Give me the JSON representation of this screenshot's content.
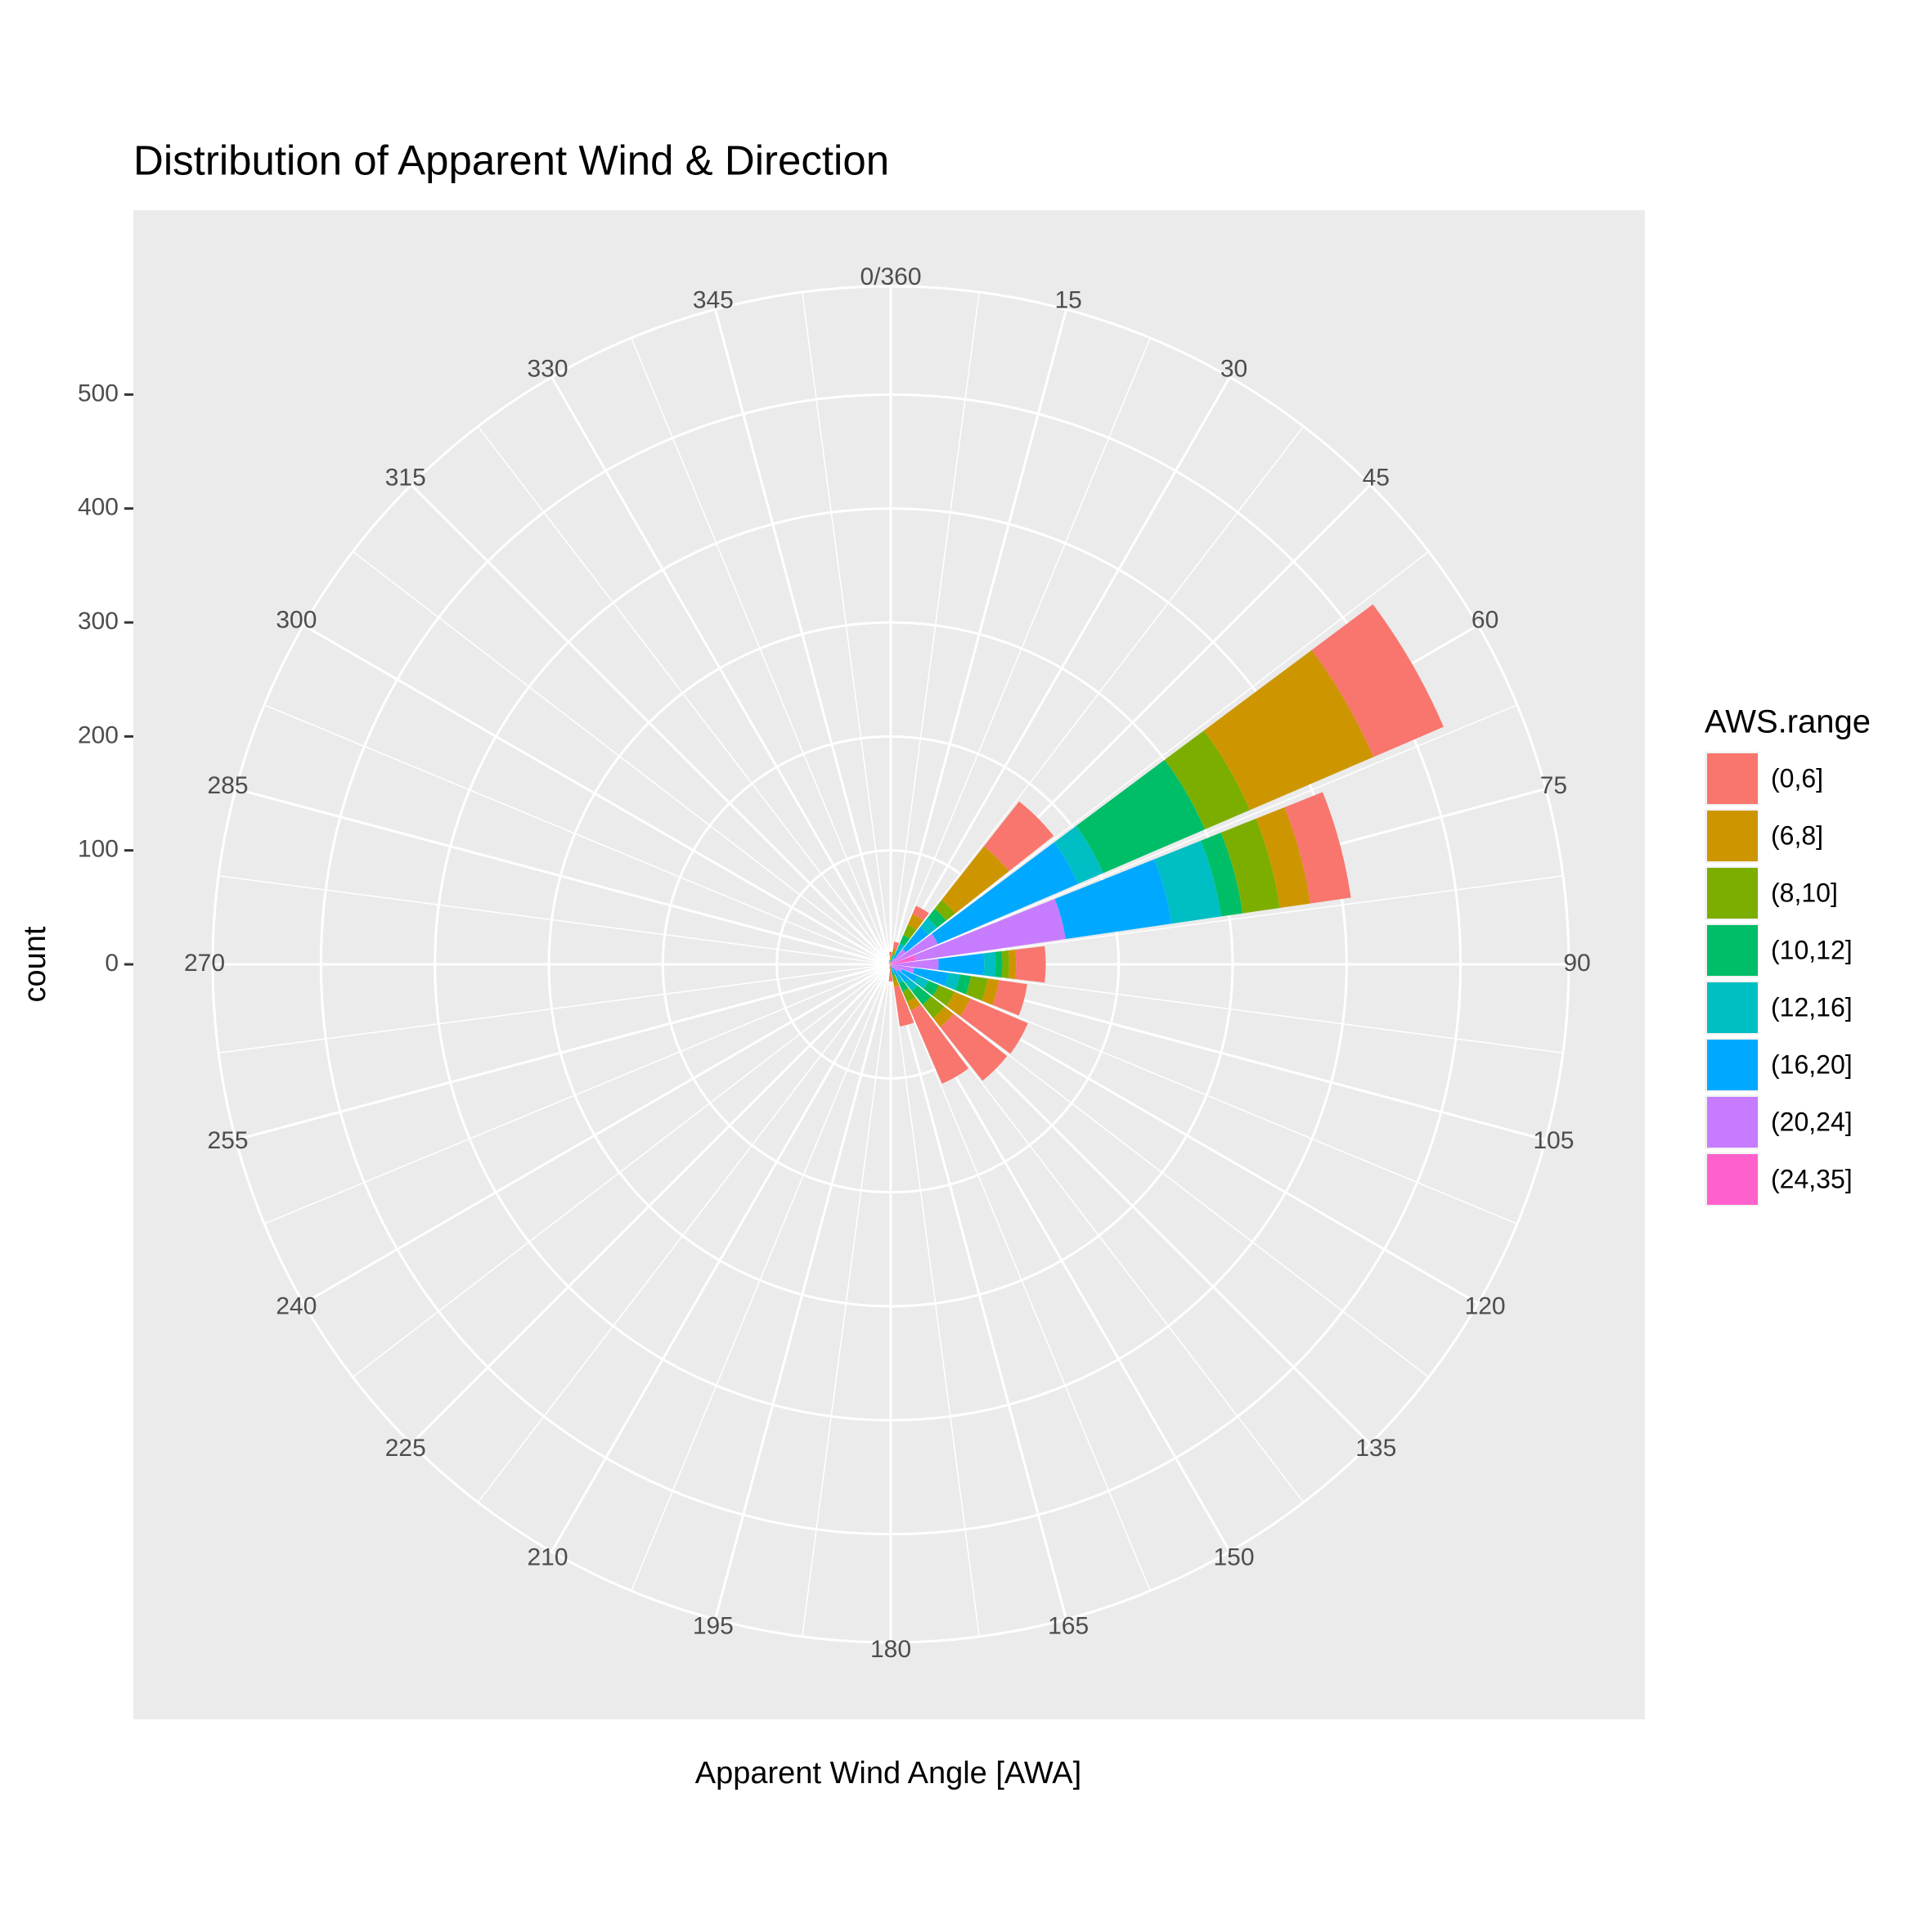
{
  "chart_data": {
    "type": "polar_stacked_bar",
    "title": "Distribution of Apparent Wind & Direction",
    "x_label": "Apparent Wind Angle [AWA]",
    "y_label": "count",
    "legend_title": "AWS.range",
    "categories": [
      "0/360",
      "15",
      "30",
      "45",
      "60",
      "75",
      "90",
      "105",
      "120",
      "135",
      "150",
      "165",
      "180",
      "195",
      "210",
      "225",
      "240",
      "255",
      "270",
      "285",
      "300",
      "315",
      "330",
      "345"
    ],
    "ylim": [
      0,
      595
    ],
    "yticks": [
      0,
      100,
      200,
      300,
      400,
      500
    ],
    "grid": true,
    "series": [
      {
        "name": "(0,6]",
        "color": "#F8766D",
        "values": [
          4,
          6,
          8,
          50,
          67,
          36,
          26,
          25,
          55,
          60,
          70,
          35,
          10,
          3,
          2,
          1,
          1,
          1,
          1,
          1,
          2,
          2,
          2,
          3
        ]
      },
      {
        "name": "(6,8]",
        "color": "#CD9600",
        "values": [
          2,
          3,
          10,
          60,
          118,
          27,
          6,
          10,
          15,
          10,
          8,
          5,
          2,
          1,
          0,
          0,
          0,
          0,
          0,
          0,
          0,
          0,
          1,
          1
        ]
      },
      {
        "name": "(8,10]",
        "color": "#7CAE00",
        "values": [
          1,
          3,
          10,
          10,
          43,
          33,
          6,
          15,
          15,
          15,
          10,
          5,
          1,
          0,
          0,
          0,
          0,
          0,
          0,
          0,
          0,
          0,
          0,
          0
        ]
      },
      {
        "name": "(10,12]",
        "color": "#00BE67",
        "values": [
          1,
          2,
          8,
          10,
          97,
          19,
          6,
          10,
          10,
          15,
          8,
          3,
          1,
          0,
          0,
          0,
          0,
          0,
          0,
          0,
          0,
          0,
          0,
          0
        ]
      },
      {
        "name": "(12,16]",
        "color": "#00BFC4",
        "values": [
          1,
          2,
          6,
          10,
          24,
          44,
          10,
          10,
          10,
          10,
          6,
          2,
          0,
          0,
          0,
          0,
          0,
          0,
          0,
          0,
          0,
          0,
          0,
          0
        ]
      },
      {
        "name": "(16,20]",
        "color": "#00A9FF",
        "values": [
          1,
          2,
          8,
          25,
          134,
          94,
          40,
          30,
          15,
          12,
          8,
          3,
          1,
          0,
          0,
          0,
          0,
          0,
          0,
          0,
          0,
          0,
          0,
          0
        ]
      },
      {
        "name": "(20,24]",
        "color": "#C77CFF",
        "values": [
          1,
          2,
          5,
          15,
          40,
          133,
          40,
          20,
          10,
          7,
          4,
          2,
          0,
          0,
          0,
          0,
          0,
          0,
          0,
          0,
          0,
          0,
          0,
          0
        ]
      },
      {
        "name": "(24,35]",
        "color": "#FF61CC",
        "values": [
          0,
          0,
          1,
          2,
          5,
          22,
          2,
          1,
          1,
          1,
          0,
          0,
          0,
          0,
          0,
          0,
          0,
          0,
          0,
          0,
          0,
          0,
          0,
          0
        ]
      }
    ]
  }
}
